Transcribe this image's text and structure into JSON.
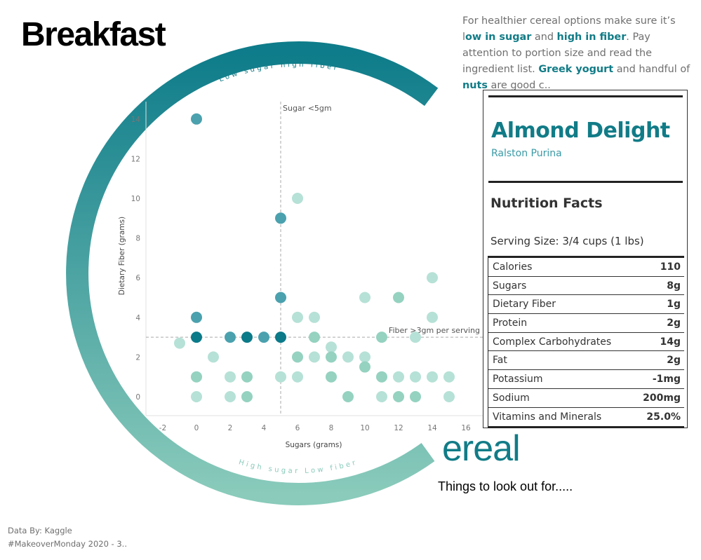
{
  "header": {
    "title": "Breakfast"
  },
  "intro": {
    "p1": "For healthier cereal options make sure it’s l",
    "low_sugar": "ow in sugar",
    "and": " and ",
    "high_fiber": "high in fiber",
    "p2": ". Pay attention to portion size and read the ingredient list. ",
    "greek": "Greek yogurt",
    "p3": " and handful of ",
    "nuts": "nuts",
    "p4": " are good c.."
  },
  "ring": {
    "top_label": "Low sugar high fiber",
    "bottom_label": "High sugar Low fiber"
  },
  "brand": {
    "ereal": "ereal",
    "tagline": "Things to look out for....."
  },
  "footer": {
    "source": "Data By: Kaggle",
    "tag": "#MakeoverMonday 2020 - 3.."
  },
  "colors": {
    "dark": "#0b7a89",
    "medium": "#4ba1ae",
    "green": "#95d2c0",
    "light": "#b6e1d6",
    "accent": "#117c87"
  },
  "chart_data": {
    "type": "scatter",
    "xlabel": "Sugars (grams)",
    "ylabel": "Dietary Fiber (grams)",
    "xlim": [
      -3,
      17
    ],
    "ylim": [
      -1,
      15
    ],
    "xticks": [
      "-2",
      "0",
      "2",
      "4",
      "6",
      "8",
      "10",
      "12",
      "14",
      "16"
    ],
    "yticks": [
      "0",
      "2",
      "4",
      "6",
      "8",
      "10",
      "12",
      "14"
    ],
    "ref_lines": [
      {
        "axis": "x",
        "value": 5,
        "label": "Sugar <5gm"
      },
      {
        "axis": "y",
        "value": 3,
        "label": "Fiber >3gm per serving"
      }
    ],
    "points": [
      [
        0,
        14,
        "medium"
      ],
      [
        6,
        10,
        "light"
      ],
      [
        5,
        9,
        "medium"
      ],
      [
        14,
        6,
        "light"
      ],
      [
        5,
        5,
        "medium"
      ],
      [
        10,
        5,
        "light"
      ],
      [
        12,
        5,
        "green"
      ],
      [
        0,
        4,
        "medium"
      ],
      [
        6,
        4,
        "light"
      ],
      [
        7,
        4,
        "light"
      ],
      [
        14,
        4,
        "light"
      ],
      [
        0,
        3,
        "dark"
      ],
      [
        2,
        3,
        "medium"
      ],
      [
        3,
        3,
        "dark"
      ],
      [
        4,
        3,
        "medium"
      ],
      [
        5,
        3,
        "dark"
      ],
      [
        7,
        3,
        "green"
      ],
      [
        11,
        3,
        "green"
      ],
      [
        13,
        3,
        "light"
      ],
      [
        -1,
        2.7,
        "light"
      ],
      [
        8,
        2.5,
        "light"
      ],
      [
        1,
        2,
        "light"
      ],
      [
        6,
        2,
        "green"
      ],
      [
        7,
        2,
        "light"
      ],
      [
        8,
        2,
        "green"
      ],
      [
        9,
        2,
        "light"
      ],
      [
        10,
        2,
        "light"
      ],
      [
        10,
        1.5,
        "green"
      ],
      [
        0,
        1,
        "green"
      ],
      [
        2,
        1,
        "light"
      ],
      [
        3,
        1,
        "green"
      ],
      [
        5,
        1,
        "light"
      ],
      [
        6,
        1,
        "light"
      ],
      [
        8,
        1,
        "green"
      ],
      [
        11,
        1,
        "green"
      ],
      [
        12,
        1,
        "light"
      ],
      [
        13,
        1,
        "light"
      ],
      [
        14,
        1,
        "light"
      ],
      [
        15,
        1,
        "light"
      ],
      [
        0,
        0,
        "light"
      ],
      [
        2,
        0,
        "light"
      ],
      [
        3,
        0,
        "green"
      ],
      [
        9,
        0,
        "green"
      ],
      [
        11,
        0,
        "light"
      ],
      [
        12,
        0,
        "green"
      ],
      [
        13,
        0,
        "green"
      ],
      [
        15,
        0,
        "light"
      ]
    ]
  },
  "nutrition": {
    "name": "Almond Delight",
    "manufacturer": "Ralston Purina",
    "heading": "Nutrition Facts",
    "serving": "Serving Size:  3/4 cups (1 lbs)",
    "rows": [
      {
        "label": "Calories",
        "value": "110"
      },
      {
        "label": "Sugars",
        "value": "8g"
      },
      {
        "label": "Dietary Fiber",
        "value": "1g"
      },
      {
        "label": "Protein",
        "value": "2g"
      },
      {
        "label": "Complex Carbohydrates",
        "value": "14g"
      },
      {
        "label": "Fat",
        "value": "2g"
      },
      {
        "label": "Potassium",
        "value": "-1mg"
      },
      {
        "label": "Sodium",
        "value": "200mg"
      },
      {
        "label": "Vitamins and Minerals",
        "value": "25.0%"
      }
    ]
  }
}
